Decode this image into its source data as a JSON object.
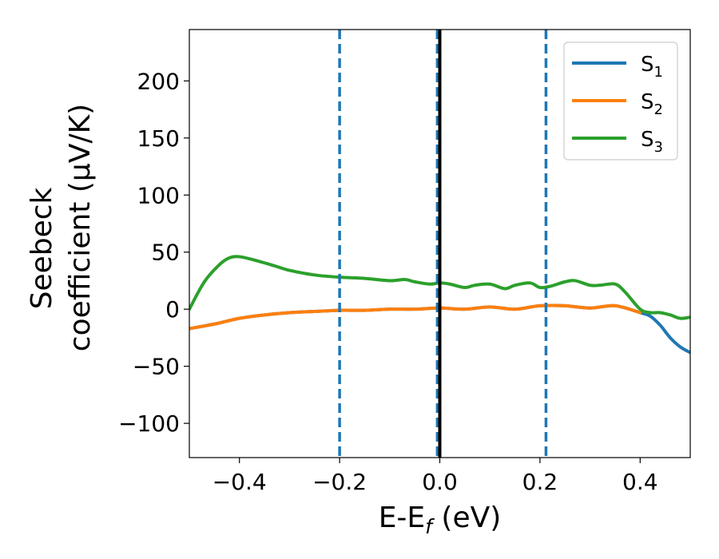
{
  "chart_data": {
    "type": "line",
    "xlabel": "E-E_f (eV)",
    "xlabel_parts": {
      "main": "E-E",
      "sub": "f",
      "rest": " (eV)"
    },
    "ylabel": [
      "Seebeck",
      "coefficient  (μV/K)"
    ],
    "ylabel_line1": "Seebeck",
    "ylabel_line2": "coefficient  (μV/K)",
    "xlim": [
      -0.5,
      0.5
    ],
    "ylim": [
      -130,
      245
    ],
    "xticks": [
      -0.4,
      -0.2,
      0.0,
      0.2,
      0.4
    ],
    "xtick_labels": [
      "−0.4",
      "−0.2",
      "0.0",
      "0.2",
      "0.4"
    ],
    "yticks": [
      -100,
      -50,
      0,
      50,
      100,
      150,
      200
    ],
    "ytick_labels": [
      "−100",
      "−50",
      "0",
      "50",
      "100",
      "150",
      "200"
    ],
    "grid": false,
    "legend_position": "top-right",
    "vlines_dashed": [
      -0.2,
      -0.005,
      0.212
    ],
    "vline_solid": 0.0,
    "colors": {
      "S1": "#1f77b4",
      "S2": "#ff7f0e",
      "S3": "#2ca02c",
      "fermi": "#000000"
    },
    "series": [
      {
        "name": "S1",
        "legend": {
          "main": "S",
          "sub": "1"
        },
        "x": [
          -0.5,
          -0.45,
          -0.4,
          -0.35,
          -0.3,
          -0.25,
          -0.2,
          -0.15,
          -0.1,
          -0.05,
          0.0,
          0.05,
          0.1,
          0.15,
          0.2,
          0.25,
          0.3,
          0.35,
          0.4,
          0.42,
          0.44,
          0.46,
          0.48,
          0.5
        ],
        "y": [
          -17,
          -13,
          -8,
          -5,
          -3,
          -2,
          -1,
          -1,
          0,
          0,
          1,
          0,
          2,
          0,
          3,
          3,
          1,
          3,
          -3,
          -6,
          -14,
          -25,
          -33,
          -38
        ]
      },
      {
        "name": "S2",
        "legend": {
          "main": "S",
          "sub": "2"
        },
        "x": [
          -0.5,
          -0.45,
          -0.4,
          -0.35,
          -0.3,
          -0.25,
          -0.2,
          -0.15,
          -0.1,
          -0.05,
          0.0,
          0.05,
          0.1,
          0.15,
          0.2,
          0.25,
          0.3,
          0.35,
          0.4
        ],
        "y": [
          -17,
          -13,
          -8,
          -5,
          -3,
          -2,
          -1,
          -1,
          0,
          0,
          1,
          0,
          2,
          0,
          3,
          3,
          1,
          3,
          -3
        ]
      },
      {
        "name": "S3",
        "legend": {
          "main": "S",
          "sub": "3"
        },
        "x": [
          -0.5,
          -0.47,
          -0.44,
          -0.42,
          -0.4,
          -0.37,
          -0.33,
          -0.3,
          -0.25,
          -0.2,
          -0.15,
          -0.1,
          -0.07,
          -0.05,
          -0.02,
          0.0,
          0.02,
          0.05,
          0.07,
          0.1,
          0.13,
          0.15,
          0.18,
          0.2,
          0.22,
          0.25,
          0.27,
          0.3,
          0.32,
          0.35,
          0.37,
          0.4,
          0.42,
          0.44,
          0.46,
          0.48,
          0.5
        ],
        "y": [
          0,
          24,
          39,
          45,
          46,
          43,
          38,
          34,
          30,
          28,
          27,
          25,
          26,
          24,
          22,
          23,
          22,
          19,
          21,
          22,
          18,
          21,
          23,
          19,
          20,
          24,
          25,
          21,
          21,
          22,
          15,
          0,
          -3,
          -3,
          -5,
          -8,
          -7
        ]
      }
    ]
  }
}
